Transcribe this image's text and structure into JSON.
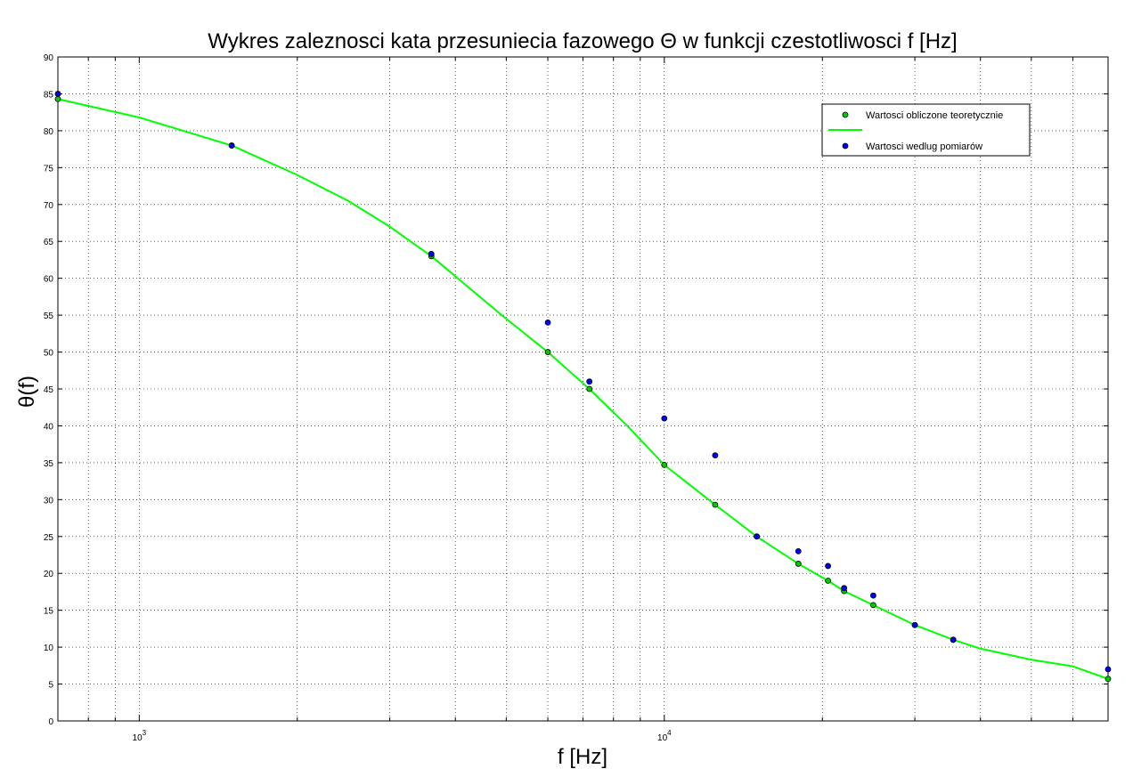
{
  "chart_data": {
    "type": "scatter",
    "title": "Wykres zaleznosci kata przesuniecia fazowego Θ w funkcji czestotliwosci f [Hz]",
    "xlabel": "f [Hz]",
    "ylabel": "θ(f)",
    "xscale": "log",
    "xlim": [
      700,
      70000
    ],
    "ylim": [
      0,
      90
    ],
    "grid": true,
    "legend_position": "top-right",
    "yticks": [
      0,
      5,
      10,
      15,
      20,
      25,
      30,
      35,
      40,
      45,
      50,
      55,
      60,
      65,
      70,
      75,
      80,
      85,
      90
    ],
    "xtick_labels": [
      {
        "value": 1000,
        "base": "10",
        "exp": "3"
      },
      {
        "value": 10000,
        "base": "10",
        "exp": "4"
      }
    ],
    "series": [
      {
        "name": "Wartosci obliczone teoretycznie",
        "kind": "markers",
        "color": "#00cc00",
        "points": [
          [
            700,
            84.3
          ],
          [
            1500,
            78.0
          ],
          [
            3600,
            63.0
          ],
          [
            6000,
            50.0
          ],
          [
            7200,
            45.0
          ],
          [
            10000,
            34.7
          ],
          [
            12500,
            29.3
          ],
          [
            15000,
            25.0
          ],
          [
            18000,
            21.3
          ],
          [
            20500,
            19.0
          ],
          [
            22000,
            17.6
          ],
          [
            25000,
            15.7
          ],
          [
            30000,
            13.0
          ],
          [
            35500,
            11.0
          ],
          [
            70000,
            5.7
          ]
        ]
      },
      {
        "name": "",
        "kind": "line",
        "color": "#00ff00",
        "points": [
          [
            700,
            84.3
          ],
          [
            1000,
            81.8
          ],
          [
            1500,
            78.0
          ],
          [
            2000,
            74.0
          ],
          [
            2500,
            70.5
          ],
          [
            3000,
            67.0
          ],
          [
            3600,
            63.0
          ],
          [
            4200,
            59.0
          ],
          [
            5000,
            54.5
          ],
          [
            6000,
            50.0
          ],
          [
            7200,
            45.0
          ],
          [
            8500,
            40.0
          ],
          [
            10000,
            34.7
          ],
          [
            12500,
            29.3
          ],
          [
            15000,
            25.0
          ],
          [
            18000,
            21.3
          ],
          [
            20500,
            19.0
          ],
          [
            22000,
            17.6
          ],
          [
            25000,
            15.7
          ],
          [
            30000,
            13.0
          ],
          [
            35500,
            11.0
          ],
          [
            40000,
            9.8
          ],
          [
            50000,
            8.3
          ],
          [
            60000,
            7.4
          ],
          [
            70000,
            5.7
          ]
        ]
      },
      {
        "name": "Wartosci wedlug pomiarów",
        "kind": "markers",
        "color": "#0000ff",
        "points": [
          [
            700,
            85.0
          ],
          [
            1500,
            78.0
          ],
          [
            3600,
            63.3
          ],
          [
            6000,
            54.0
          ],
          [
            7200,
            46.0
          ],
          [
            10000,
            41.0
          ],
          [
            12500,
            36.0
          ],
          [
            15000,
            25.0
          ],
          [
            18000,
            23.0
          ],
          [
            20500,
            21.0
          ],
          [
            22000,
            18.0
          ],
          [
            25000,
            17.0
          ],
          [
            30000,
            13.0
          ],
          [
            35500,
            11.0
          ],
          [
            70000,
            7.0
          ]
        ]
      }
    ]
  }
}
